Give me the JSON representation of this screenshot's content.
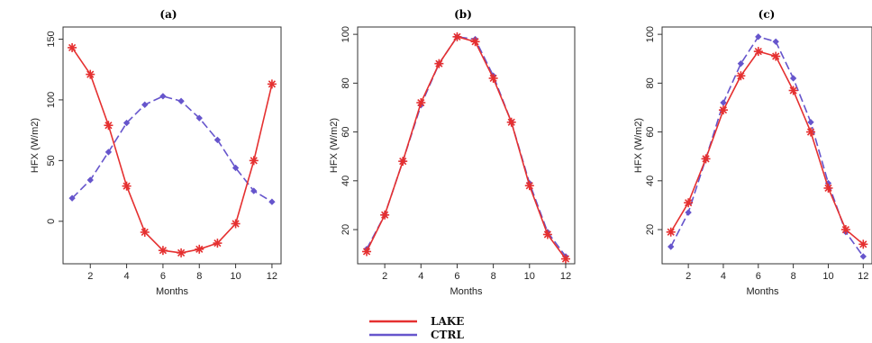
{
  "chart_data": [
    {
      "type": "line",
      "title": "(a)",
      "xlabel": "Months",
      "ylabel": "HFX (W/m2)",
      "x": [
        1,
        2,
        3,
        4,
        5,
        6,
        7,
        8,
        9,
        10,
        11,
        12
      ],
      "xticks": [
        2,
        4,
        6,
        8,
        10,
        12
      ],
      "yticks": [
        0,
        50,
        100,
        150
      ],
      "xlim": [
        0.5,
        12.5
      ],
      "ylim": [
        -35,
        160
      ],
      "series": [
        {
          "name": "LAKE",
          "color": "#e53030",
          "values": [
            143,
            121,
            79,
            29,
            -9,
            -24,
            -26,
            -23,
            -18,
            -2,
            50,
            113
          ]
        },
        {
          "name": "CTRL",
          "color": "#6655cc",
          "values": [
            19,
            34,
            57,
            81,
            96,
            103,
            99,
            85,
            67,
            44,
            25,
            16
          ]
        }
      ]
    },
    {
      "type": "line",
      "title": "(b)",
      "xlabel": "Months",
      "ylabel": "HFX (W/m2)",
      "x": [
        1,
        2,
        3,
        4,
        5,
        6,
        7,
        8,
        9,
        10,
        11,
        12
      ],
      "xticks": [
        2,
        4,
        6,
        8,
        10,
        12
      ],
      "yticks": [
        20,
        40,
        60,
        80,
        100
      ],
      "xlim": [
        0.5,
        12.5
      ],
      "ylim": [
        6,
        103
      ],
      "series": [
        {
          "name": "LAKE",
          "color": "#e53030",
          "values": [
            11,
            26,
            48,
            72,
            88,
            99,
            97,
            82,
            64,
            38,
            18,
            8
          ]
        },
        {
          "name": "CTRL",
          "color": "#6655cc",
          "values": [
            12,
            26,
            48,
            71,
            88,
            99,
            98,
            83,
            64,
            39,
            19,
            9
          ]
        }
      ]
    },
    {
      "type": "line",
      "title": "(c)",
      "xlabel": "Months",
      "ylabel": "HFX (W/m2)",
      "x": [
        1,
        2,
        3,
        4,
        5,
        6,
        7,
        8,
        9,
        10,
        11,
        12
      ],
      "xticks": [
        2,
        4,
        6,
        8,
        10,
        12
      ],
      "yticks": [
        20,
        40,
        60,
        80,
        100
      ],
      "xlim": [
        0.5,
        12.5
      ],
      "ylim": [
        6,
        103
      ],
      "series": [
        {
          "name": "LAKE",
          "color": "#e53030",
          "values": [
            19,
            31,
            49,
            69,
            83,
            93,
            91,
            77,
            60,
            37,
            20,
            14
          ]
        },
        {
          "name": "CTRL",
          "color": "#6655cc",
          "values": [
            13,
            27,
            49,
            72,
            88,
            99,
            97,
            82,
            64,
            39,
            19,
            9
          ]
        }
      ]
    }
  ],
  "legend": {
    "items": [
      {
        "label": "LAKE",
        "color": "#e53030"
      },
      {
        "label": "CTRL",
        "color": "#6655cc"
      }
    ]
  }
}
